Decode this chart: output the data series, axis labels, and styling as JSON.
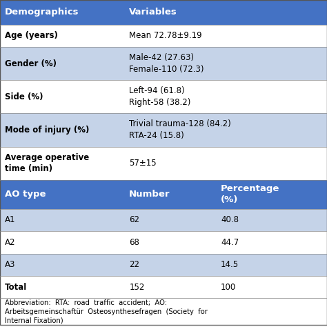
{
  "header_bg": "#4472C4",
  "header_text_color": "#FFFFFF",
  "row_bg_light": "#C5D3E8",
  "row_bg_white": "#FFFFFF",
  "header_row": [
    "Demographics",
    "Variables"
  ],
  "rows": [
    {
      "col1": "Age (years)",
      "col2": "Mean 72.78±9.19",
      "bg": "white",
      "bold_col1": true
    },
    {
      "col1": "Gender (%)",
      "col2": "Male-42 (27.63)\nFemale-110 (72.3)",
      "bg": "light",
      "bold_col1": true
    },
    {
      "col1": "Side (%)",
      "col2": "Left-94 (61.8)\nRight-58 (38.2)",
      "bg": "white",
      "bold_col1": true
    },
    {
      "col1": "Mode of injury (%)",
      "col2": "Trivial trauma-128 (84.2)\nRTA-24 (15.8)",
      "bg": "light",
      "bold_col1": true
    },
    {
      "col1": "Average operative\ntime (min)",
      "col2": "57±15",
      "bg": "white",
      "bold_col1": true
    }
  ],
  "subheader_row": [
    "AO type",
    "Number",
    "Percentage\n(%)"
  ],
  "data_rows": [
    {
      "col1": "A1",
      "col2": "62",
      "col3": "40.8",
      "bg": "light",
      "bold_col1": false
    },
    {
      "col1": "A2",
      "col2": "68",
      "col3": "44.7",
      "bg": "white",
      "bold_col1": false
    },
    {
      "col1": "A3",
      "col2": "22",
      "col3": "14.5",
      "bg": "light",
      "bold_col1": false
    },
    {
      "col1": "Total",
      "col2": "152",
      "col3": "100",
      "bg": "white",
      "bold_col1": true
    }
  ],
  "footer_text": "Abbreviation:  RTA:  road  traffic  accident;  AO:\nArbeitsgemeinschaftür  Osteosynthesefragen  (Society  for\nInternal Fixation)",
  "figsize": [
    4.74,
    4.74
  ],
  "dpi": 100
}
